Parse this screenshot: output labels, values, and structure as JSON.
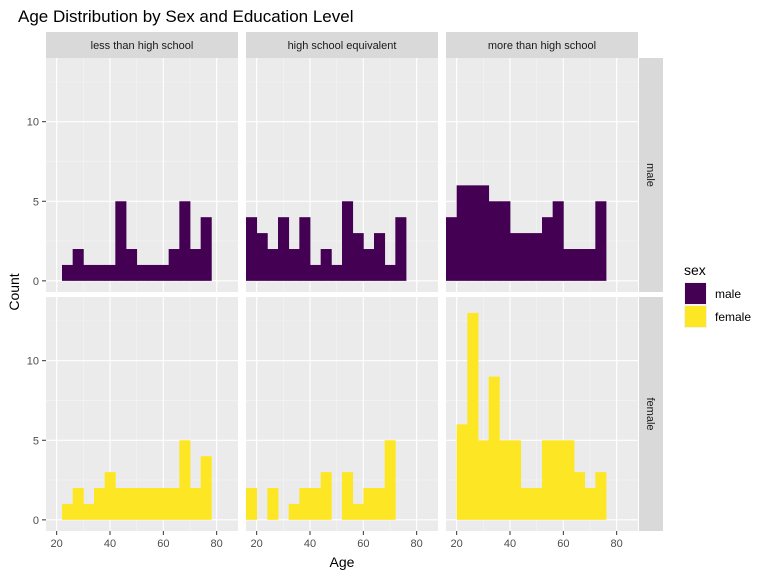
{
  "chart_data": {
    "type": "bar",
    "subtype": "faceted histogram",
    "title": "Age Distribution by Sex and Education Level",
    "xlabel": "Age",
    "ylabel": "Count",
    "xlim": [
      16,
      88
    ],
    "ylim": [
      -0.7,
      14
    ],
    "x_ticks": [
      20,
      40,
      60,
      80
    ],
    "y_ticks": [
      0,
      5,
      10
    ],
    "grid": true,
    "bin_width": 4,
    "bin_centers": [
      24,
      28,
      32,
      36,
      40,
      44,
      48,
      52,
      56,
      60,
      64,
      68,
      72,
      76,
      80
    ],
    "columns": [
      "less than high school",
      "high school equivalent",
      "more than high school"
    ],
    "rows": [
      "male",
      "female"
    ],
    "legend": {
      "title": "sex",
      "position": "right",
      "entries": [
        {
          "label": "male",
          "color": "#440154"
        },
        {
          "label": "female",
          "color": "#FDE725"
        }
      ]
    },
    "panels": [
      {
        "row": "male",
        "column": "less than high school",
        "bins": [
          {
            "x": 24,
            "count": 1
          },
          {
            "x": 28,
            "count": 2
          },
          {
            "x": 32,
            "count": 1
          },
          {
            "x": 36,
            "count": 1
          },
          {
            "x": 40,
            "count": 1
          },
          {
            "x": 44,
            "count": 5
          },
          {
            "x": 48,
            "count": 2
          },
          {
            "x": 52,
            "count": 1
          },
          {
            "x": 56,
            "count": 1
          },
          {
            "x": 60,
            "count": 1
          },
          {
            "x": 64,
            "count": 2
          },
          {
            "x": 68,
            "count": 5
          },
          {
            "x": 72,
            "count": 2
          },
          {
            "x": 76,
            "count": 4
          }
        ]
      },
      {
        "row": "male",
        "column": "high school equivalent",
        "bins": [
          {
            "x": 18,
            "count": 4
          },
          {
            "x": 22,
            "count": 3
          },
          {
            "x": 26,
            "count": 2
          },
          {
            "x": 30,
            "count": 4
          },
          {
            "x": 34,
            "count": 2
          },
          {
            "x": 38,
            "count": 4
          },
          {
            "x": 42,
            "count": 1
          },
          {
            "x": 46,
            "count": 2
          },
          {
            "x": 50,
            "count": 1
          },
          {
            "x": 54,
            "count": 5
          },
          {
            "x": 58,
            "count": 3
          },
          {
            "x": 62,
            "count": 2
          },
          {
            "x": 66,
            "count": 3
          },
          {
            "x": 70,
            "count": 1
          },
          {
            "x": 74,
            "count": 4
          }
        ]
      },
      {
        "row": "male",
        "column": "more than high school",
        "bins": [
          {
            "x": 18,
            "count": 4
          },
          {
            "x": 22,
            "count": 6
          },
          {
            "x": 26,
            "count": 6
          },
          {
            "x": 30,
            "count": 6
          },
          {
            "x": 34,
            "count": 5
          },
          {
            "x": 38,
            "count": 5
          },
          {
            "x": 42,
            "count": 3
          },
          {
            "x": 46,
            "count": 3
          },
          {
            "x": 50,
            "count": 3
          },
          {
            "x": 54,
            "count": 4
          },
          {
            "x": 58,
            "count": 5
          },
          {
            "x": 62,
            "count": 2
          },
          {
            "x": 66,
            "count": 2
          },
          {
            "x": 70,
            "count": 2
          },
          {
            "x": 74,
            "count": 5
          }
        ]
      },
      {
        "row": "female",
        "column": "less than high school",
        "bins": [
          {
            "x": 24,
            "count": 1
          },
          {
            "x": 28,
            "count": 2
          },
          {
            "x": 32,
            "count": 1
          },
          {
            "x": 36,
            "count": 2
          },
          {
            "x": 40,
            "count": 3
          },
          {
            "x": 44,
            "count": 2
          },
          {
            "x": 48,
            "count": 2
          },
          {
            "x": 52,
            "count": 2
          },
          {
            "x": 56,
            "count": 2
          },
          {
            "x": 60,
            "count": 2
          },
          {
            "x": 64,
            "count": 2
          },
          {
            "x": 68,
            "count": 5
          },
          {
            "x": 72,
            "count": 2
          },
          {
            "x": 76,
            "count": 4
          }
        ]
      },
      {
        "row": "female",
        "column": "high school equivalent",
        "bins": [
          {
            "x": 18,
            "count": 2
          },
          {
            "x": 22,
            "count": 0
          },
          {
            "x": 26,
            "count": 2
          },
          {
            "x": 30,
            "count": 0
          },
          {
            "x": 34,
            "count": 1
          },
          {
            "x": 38,
            "count": 2
          },
          {
            "x": 42,
            "count": 2
          },
          {
            "x": 46,
            "count": 3
          },
          {
            "x": 50,
            "count": 0
          },
          {
            "x": 54,
            "count": 3
          },
          {
            "x": 58,
            "count": 1
          },
          {
            "x": 62,
            "count": 2
          },
          {
            "x": 66,
            "count": 2
          },
          {
            "x": 70,
            "count": 5
          }
        ]
      },
      {
        "row": "female",
        "column": "more than high school",
        "bins": [
          {
            "x": 22,
            "count": 6
          },
          {
            "x": 26,
            "count": 13
          },
          {
            "x": 30,
            "count": 5
          },
          {
            "x": 34,
            "count": 9
          },
          {
            "x": 38,
            "count": 5
          },
          {
            "x": 42,
            "count": 5
          },
          {
            "x": 46,
            "count": 2
          },
          {
            "x": 50,
            "count": 2
          },
          {
            "x": 54,
            "count": 5
          },
          {
            "x": 58,
            "count": 5
          },
          {
            "x": 62,
            "count": 5
          },
          {
            "x": 66,
            "count": 3
          },
          {
            "x": 70,
            "count": 2
          },
          {
            "x": 74,
            "count": 3
          }
        ]
      }
    ]
  }
}
